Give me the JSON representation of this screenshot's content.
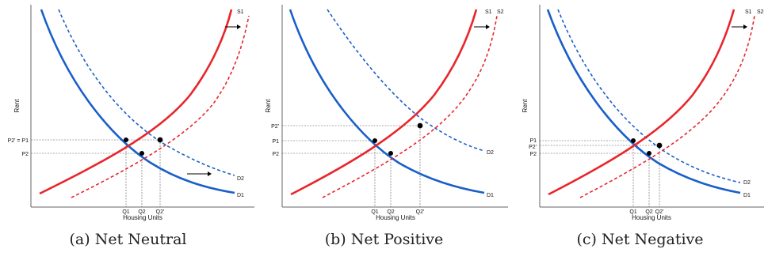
{
  "figures": [
    {
      "caption": "(a) Net Neutral",
      "xlabel": "Housing Units",
      "ylabel": "Rent",
      "curves": {
        "s1": "S1",
        "s2": "",
        "d1": "D1",
        "d2": "D2"
      },
      "price_labels": [
        "P2' = P1",
        "P2"
      ],
      "quantity_labels": [
        "Q1",
        "Q2",
        "Q2'"
      ],
      "shift_arrows": [
        "supply-right",
        "demand-right"
      ]
    },
    {
      "caption": "(b) Net Positive",
      "xlabel": "Housing Units",
      "ylabel": "Rent",
      "curves": {
        "s1": "S1",
        "s2": "S2",
        "d1": "D1",
        "d2": "D2"
      },
      "price_labels": [
        "P2'",
        "P1",
        "P2"
      ],
      "quantity_labels": [
        "Q1",
        "Q2",
        "Q2'"
      ],
      "shift_arrows": [
        "supply-right"
      ]
    },
    {
      "caption": "(c) Net Negative",
      "xlabel": "Housing Units",
      "ylabel": "Rent",
      "curves": {
        "s1": "S1",
        "s2": "S2",
        "d1": "D1",
        "d2": "D2"
      },
      "price_labels": [
        "P1",
        "P2'",
        "P2"
      ],
      "quantity_labels": [
        "Q1",
        "Q2",
        "Q2'"
      ],
      "shift_arrows": [
        "supply-right"
      ]
    }
  ],
  "colors": {
    "supply": "#e8262b",
    "demand": "#1a5fc9",
    "axis": "#666666",
    "guide": "#555555"
  }
}
